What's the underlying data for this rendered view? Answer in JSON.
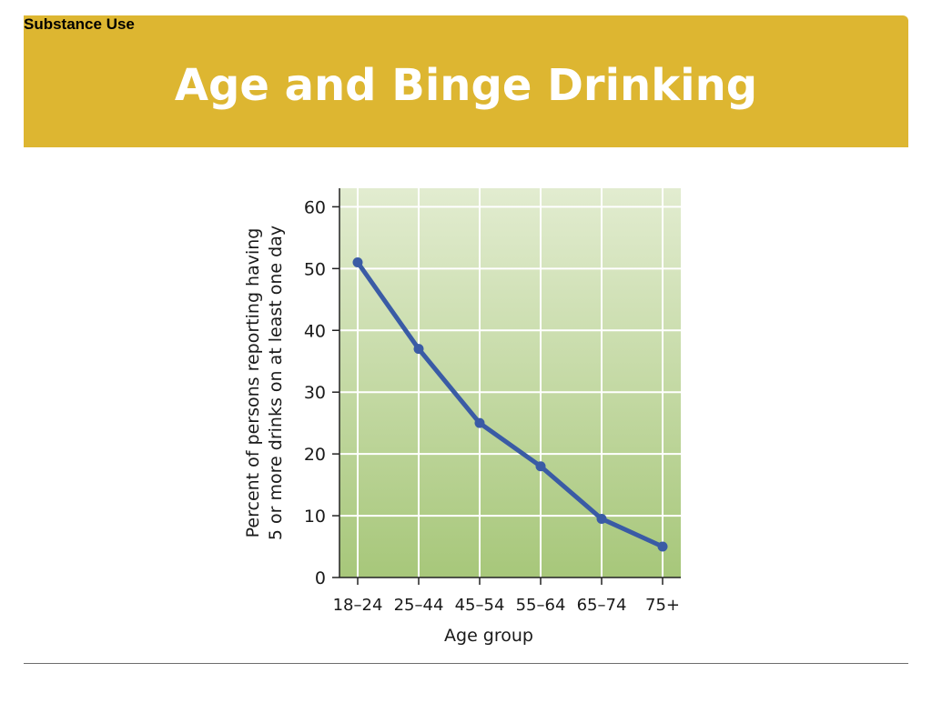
{
  "slide": {
    "section_label": "Substance Use",
    "title": "Age and Binge Drinking"
  },
  "colors": {
    "title_bar": "#ddb631",
    "line": "#3a5ba5",
    "plot_top": "#e2ecd0",
    "plot_bottom": "#a7c77a"
  },
  "chart_data": {
    "type": "line",
    "categories": [
      "18–24",
      "25–44",
      "45–54",
      "55–64",
      "65–74",
      "75+"
    ],
    "series": [
      {
        "values": [
          51,
          37,
          25,
          18,
          9.5,
          5
        ]
      }
    ],
    "xlabel": "Age group",
    "ylabel_lines": [
      "Percent of persons reporting having",
      "5 or more drinks on at least one day"
    ],
    "ylim": [
      0,
      63
    ],
    "yticks": [
      0,
      10,
      20,
      30,
      40,
      50,
      60
    ],
    "grid": true
  }
}
